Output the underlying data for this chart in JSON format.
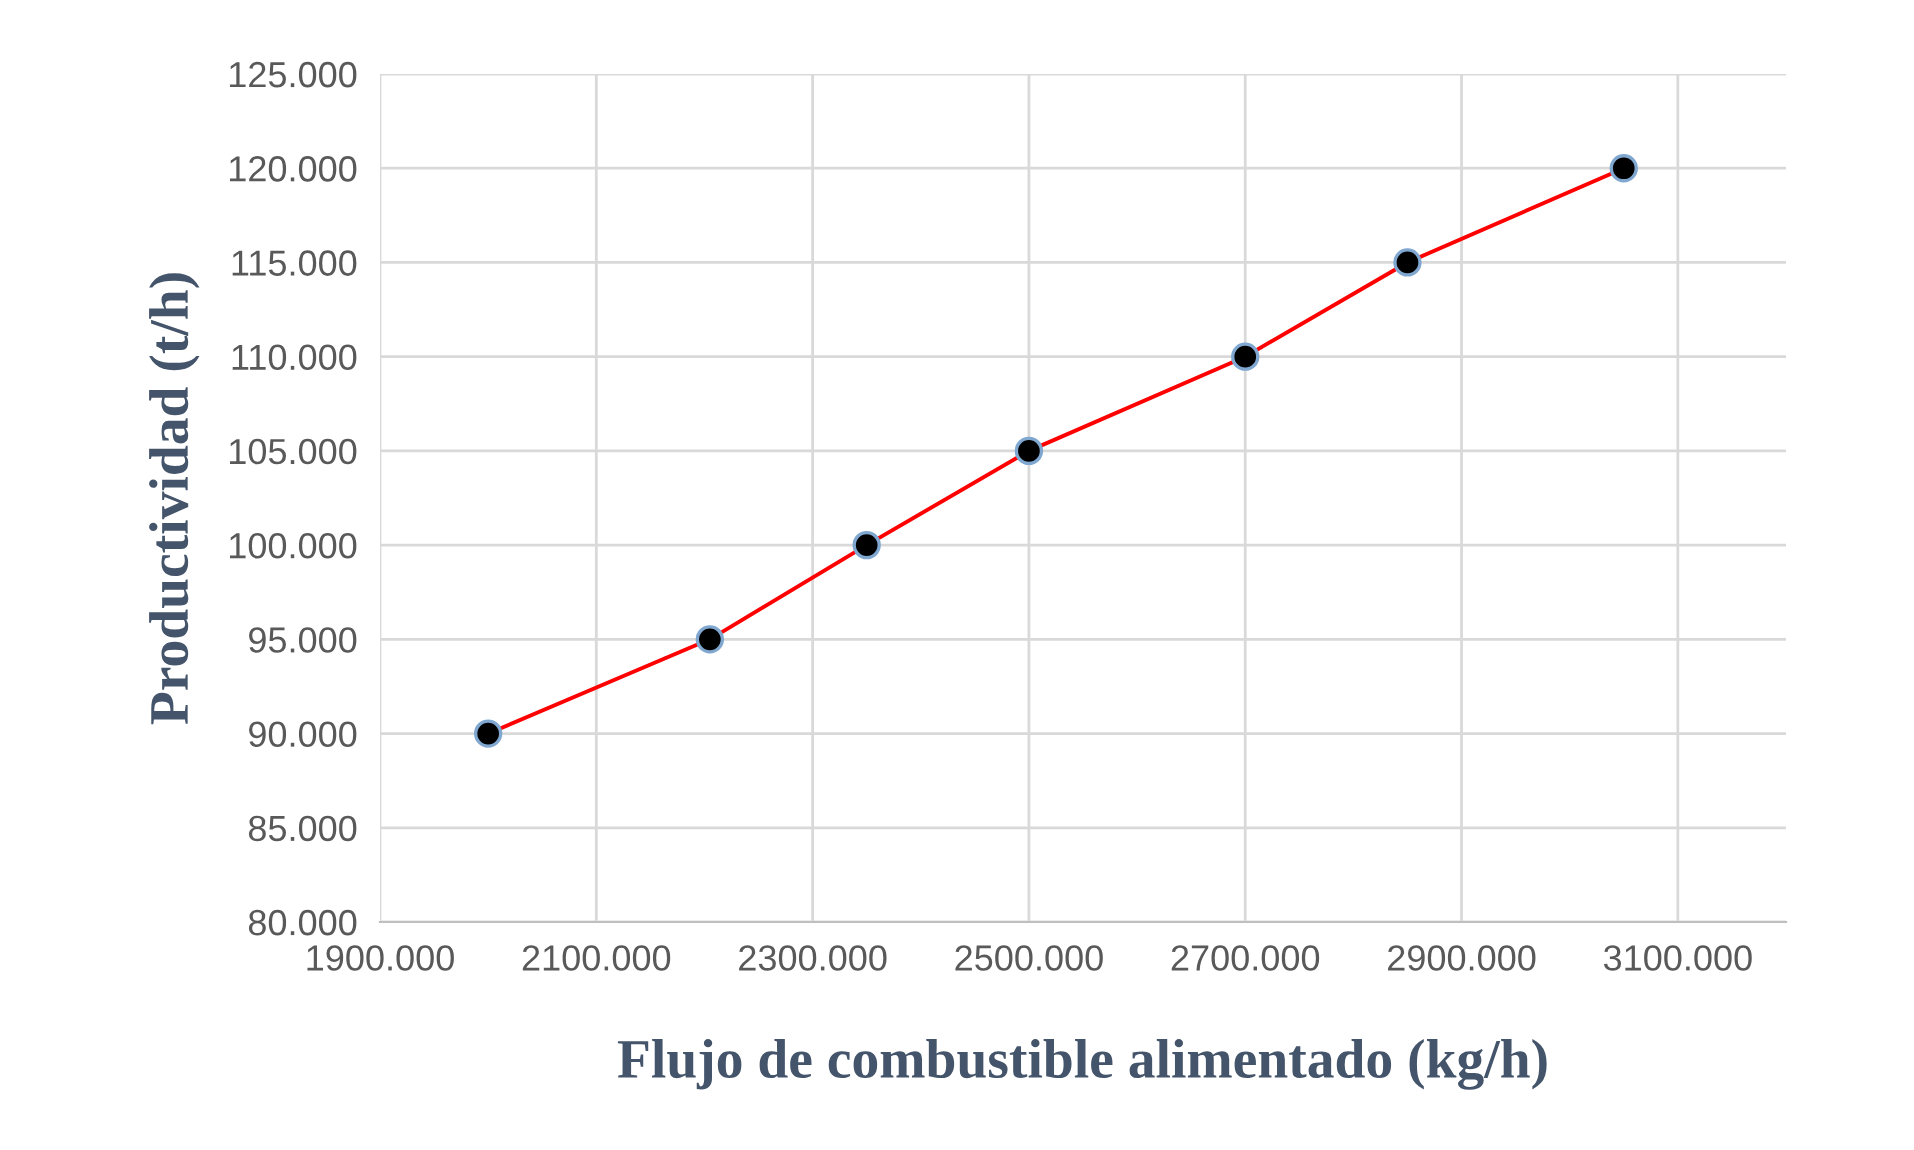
{
  "chart_data": {
    "type": "line",
    "xlabel": "Flujo de combustible alimentado (kg/h)",
    "ylabel": "Productividad (t/h)",
    "x": [
      2000,
      2205,
      2350,
      2500,
      2700,
      2850,
      3050
    ],
    "series": [
      {
        "color": "#ff0000",
        "values": [
          90,
          95,
          100,
          105,
          110,
          115,
          120
        ]
      }
    ],
    "marker": "circle",
    "line_style": "solid",
    "grid": true,
    "xlim": [
      1900,
      3200
    ],
    "ylim": [
      80,
      125
    ],
    "xticks": [
      {
        "value": 1900,
        "label": "1900.000"
      },
      {
        "value": 2100,
        "label": "2100.000"
      },
      {
        "value": 2300,
        "label": "2300.000"
      },
      {
        "value": 2500,
        "label": "2500.000"
      },
      {
        "value": 2700,
        "label": "2700.000"
      },
      {
        "value": 2900,
        "label": "2900.000"
      },
      {
        "value": 3100,
        "label": "3100.000"
      }
    ],
    "yticks": [
      {
        "value": 80,
        "label": "80.000"
      },
      {
        "value": 85,
        "label": "85.000"
      },
      {
        "value": 90,
        "label": "90.000"
      },
      {
        "value": 95,
        "label": "95.000"
      },
      {
        "value": 100,
        "label": "100.000"
      },
      {
        "value": 105,
        "label": "105.000"
      },
      {
        "value": 110,
        "label": "110.000"
      },
      {
        "value": 115,
        "label": "115.000"
      },
      {
        "value": 120,
        "label": "120.000"
      },
      {
        "value": 125,
        "label": "125.000"
      }
    ]
  }
}
